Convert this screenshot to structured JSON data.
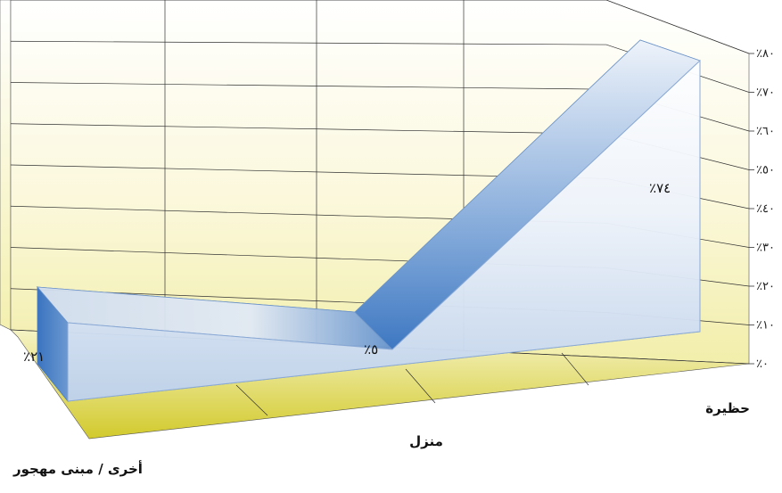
{
  "chart_data": {
    "type": "area",
    "categories": [
      "أخرى / مبنى مهجور",
      "منزل",
      "حظيرة"
    ],
    "values": [
      21,
      5,
      74
    ],
    "data_labels": [
      "٪٢١",
      "٪٥",
      "٪٧٤"
    ],
    "y_tick_labels": [
      "٪٠",
      "٪١٠",
      "٪٢٠",
      "٪٣٠",
      "٪٤٠",
      "٪٥٠",
      "٪٦٠",
      "٪٧٠",
      "٪٨٠"
    ],
    "ylim": [
      0,
      80
    ],
    "grid": true,
    "title": "",
    "xlabel": "",
    "ylabel": "",
    "colors": {
      "area_front_top": "#ffffff",
      "area_front_bottom": "#bcd0ec",
      "area_blue": "#3e78c2",
      "area_blue_light": "#dde8f5",
      "wall_top": "#ffffff",
      "wall_bottom": "#f4f0ae",
      "floor_back": "#f3efb0",
      "floor_front": "#d3cc2e",
      "grid": "#333333"
    }
  }
}
